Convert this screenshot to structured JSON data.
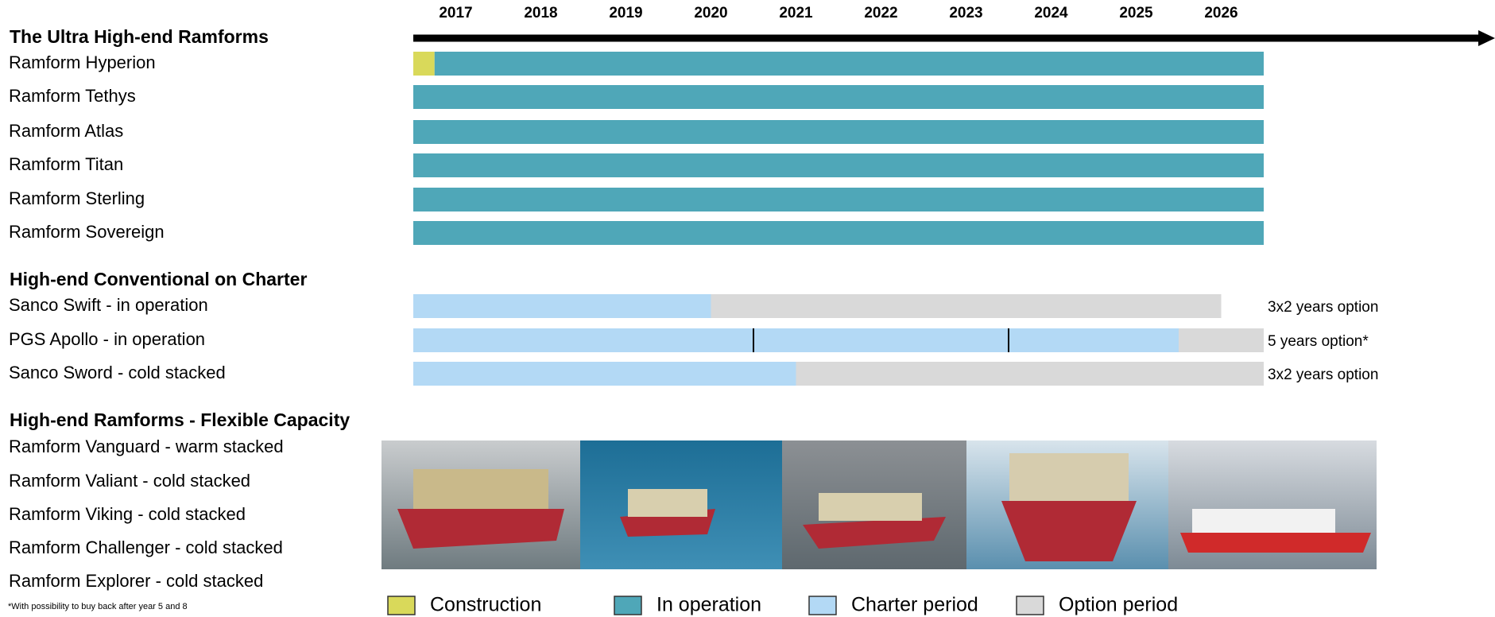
{
  "chart_data": {
    "type": "gantt",
    "xlim": [
      2017,
      2027
    ],
    "categories": [
      "2017",
      "2018",
      "2019",
      "2020",
      "2021",
      "2022",
      "2023",
      "2024",
      "2025",
      "2026"
    ],
    "legend": [
      {
        "name": "Construction",
        "color": "#d9d95a"
      },
      {
        "name": "In operation",
        "color": "#4fa7b8"
      },
      {
        "name": "Charter period",
        "color": "#b3d9f5"
      },
      {
        "name": "Option period",
        "color": "#d9d9d9"
      }
    ],
    "groups": [
      {
        "title": "The Ultra High-end Ramforms",
        "rows": [
          {
            "label": "Ramform Hyperion",
            "segments": [
              {
                "status": 0,
                "start": 2017,
                "end": 2017.25
              },
              {
                "status": 1,
                "start": 2017.25,
                "end": 2027
              }
            ]
          },
          {
            "label": "Ramform Tethys",
            "segments": [
              {
                "status": 1,
                "start": 2017,
                "end": 2027
              }
            ]
          },
          {
            "label": "Ramform Atlas",
            "segments": [
              {
                "status": 1,
                "start": 2017,
                "end": 2027
              }
            ]
          },
          {
            "label": "Ramform Titan",
            "segments": [
              {
                "status": 1,
                "start": 2017,
                "end": 2027
              }
            ]
          },
          {
            "label": "Ramform Sterling",
            "segments": [
              {
                "status": 1,
                "start": 2017,
                "end": 2027
              }
            ]
          },
          {
            "label": "Ramform Sovereign",
            "segments": [
              {
                "status": 1,
                "start": 2017,
                "end": 2027
              }
            ]
          }
        ]
      },
      {
        "title": "High-end Conventional on Charter",
        "rows": [
          {
            "label": "Sanco Swift - in operation",
            "segments": [
              {
                "status": 2,
                "start": 2017,
                "end": 2020.5
              },
              {
                "status": 3,
                "start": 2020.5,
                "end": 2026.5
              }
            ],
            "note": "3x2 years option"
          },
          {
            "label": "PGS Apollo - in operation",
            "segments": [
              {
                "status": 2,
                "start": 2017,
                "end": 2026
              },
              {
                "status": 3,
                "start": 2026,
                "end": 2027
              }
            ],
            "marks": [
              2021,
              2024
            ],
            "note": "5 years option*"
          },
          {
            "label": "Sanco Sword - cold stacked",
            "segments": [
              {
                "status": 2,
                "start": 2017,
                "end": 2021.5
              },
              {
                "status": 3,
                "start": 2021.5,
                "end": 2027
              }
            ],
            "note": "3x2 years option"
          }
        ]
      },
      {
        "title": "High-end Ramforms - Flexible Capacity",
        "rows": [
          {
            "label": "Ramform Vanguard - warm stacked"
          },
          {
            "label": "Ramform Valiant - cold stacked"
          },
          {
            "label": "Ramform Viking - cold stacked"
          },
          {
            "label": "Ramform Challenger - cold stacked"
          },
          {
            "label": "Ramform Explorer - cold stacked"
          }
        ]
      }
    ],
    "footnote": "*With possibility to buy back after year 5 and 8"
  }
}
